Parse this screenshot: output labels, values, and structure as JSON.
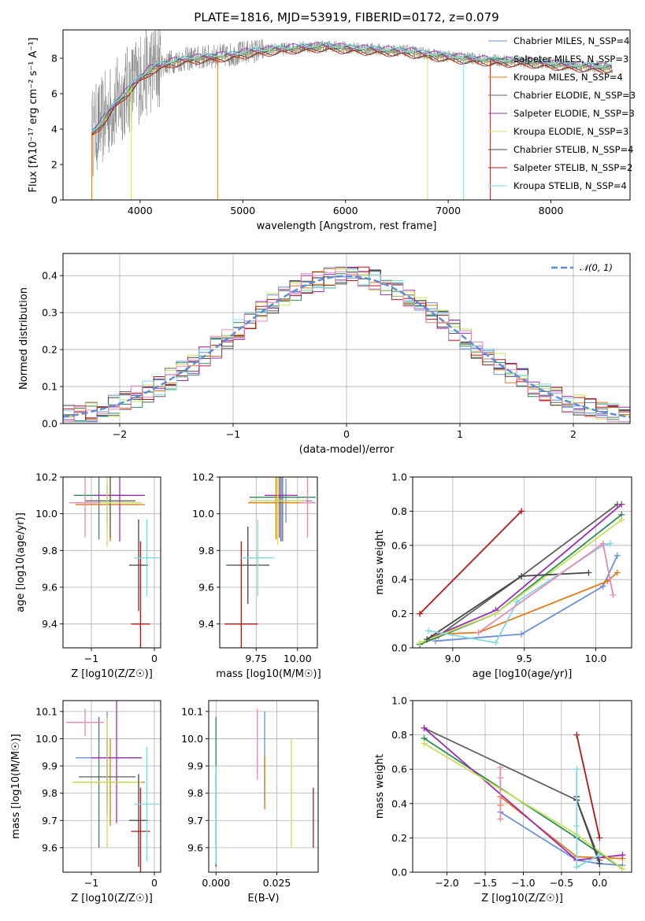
{
  "figure_title": "PLATE=1816, MJD=53919, FIBERID=0172, z=0.079",
  "colors": {
    "Chabrier MILES": "#6a8fd8",
    "Salpeter MILES": "#2e8b57",
    "Kroupa MILES": "#e07b1a",
    "Chabrier ELODIE": "#606060",
    "Salpeter ELODIE": "#9a2fb3",
    "Kroupa ELODIE": "#c8e05a",
    "Chabrier STELIB": "#444444",
    "Salpeter STELIB": "#b01818",
    "Kroupa STELIB": "#7fdbe0"
  },
  "chart_data": [
    {
      "id": "spectrum",
      "type": "line",
      "title": "PLATE=1816, MJD=53919, FIBERID=0172, z=0.079",
      "xlabel": "wavelength [Angstrom, rest frame]",
      "ylabel": "Flux [fλ10⁻¹⁷ erg cm⁻² s⁻¹ A⁻¹]",
      "xlim": [
        3250,
        8770
      ],
      "ylim": [
        0,
        9.6
      ],
      "xticks": [
        4000,
        5000,
        6000,
        7000,
        8000
      ],
      "yticks": [
        0,
        2,
        4,
        6,
        8
      ],
      "data_color": "#808080",
      "continuum": [
        [
          3530,
          3.8
        ],
        [
          3600,
          4.2
        ],
        [
          3700,
          5.0
        ],
        [
          3800,
          5.7
        ],
        [
          3900,
          6.3
        ],
        [
          4000,
          6.9
        ],
        [
          4100,
          7.4
        ],
        [
          4300,
          7.8
        ],
        [
          4500,
          8.0
        ],
        [
          4700,
          8.1
        ],
        [
          4900,
          8.2
        ],
        [
          5100,
          8.4
        ],
        [
          5300,
          8.5
        ],
        [
          5500,
          8.6
        ],
        [
          5800,
          8.7
        ],
        [
          6000,
          8.6
        ],
        [
          6300,
          8.5
        ],
        [
          6600,
          8.4
        ],
        [
          7000,
          8.1
        ],
        [
          7400,
          7.9
        ],
        [
          7800,
          7.8
        ],
        [
          8200,
          7.6
        ],
        [
          8600,
          7.5
        ]
      ],
      "legend_location": "upper right",
      "legend": [
        {
          "label": "Chabrier MILES, N_SSP=4",
          "color": "#6a8fd8"
        },
        {
          "label": "Salpeter MILES, N_SSP=3",
          "color": "#2e8b57"
        },
        {
          "label": "Kroupa MILES, N_SSP=4",
          "color": "#e07b1a"
        },
        {
          "label": "Chabrier ELODIE, N_SSP=3",
          "color": "#606060"
        },
        {
          "label": "Salpeter ELODIE, N_SSP=3",
          "color": "#9a2fb3"
        },
        {
          "label": "Kroupa ELODIE, N_SSP=3",
          "color": "#c8e05a"
        },
        {
          "label": "Chabrier STELIB, N_SSP=4",
          "color": "#444444"
        },
        {
          "label": "Salpeter STELIB, N_SSP=2",
          "color": "#b01818"
        },
        {
          "label": "Kroupa STELIB, N_SSP=4",
          "color": "#7fdbe0"
        }
      ]
    },
    {
      "id": "residuals",
      "type": "histogram",
      "xlabel": "(data-model)/error",
      "ylabel": "Normed distribution",
      "xlim": [
        -2.5,
        2.5
      ],
      "ylim": [
        0,
        0.46
      ],
      "xticks": [
        -2,
        -1,
        0,
        1,
        2
      ],
      "yticks": [
        0.0,
        0.1,
        0.2,
        0.3,
        0.4
      ],
      "bin_width": 0.1,
      "gaussian_label": "𝒩(0, 1)",
      "gaussian_color": "#5b8bd9",
      "grid": true
    },
    {
      "id": "age_vs_Z",
      "type": "errorbar",
      "xlabel": "Z [log10(Z/Z☉)]",
      "ylabel": "age  [log10(age/yr)]",
      "xlim": [
        -1.45,
        0.1
      ],
      "ylim": [
        9.27,
        10.2
      ],
      "xticks": [
        -1,
        0
      ],
      "yticks": [
        9.4,
        9.6,
        9.8,
        10.0,
        10.2
      ],
      "points": [
        {
          "model": "Chabrier MILES",
          "x": -0.75,
          "xerr": 0.5,
          "y": 10.05,
          "yerr": 0.11
        },
        {
          "model": "Salpeter MILES",
          "x": -0.88,
          "xerr": 0.4,
          "y": 10.1,
          "yerr": 0.24
        },
        {
          "model": "Kroupa MILES",
          "x": -0.7,
          "xerr": 0.55,
          "y": 10.05,
          "yerr": 0.2
        },
        {
          "model": "Chabrier ELODIE",
          "x": -0.7,
          "xerr": 0.4,
          "y": 10.07,
          "yerr": 0.2
        },
        {
          "model": "Salpeter ELODIE",
          "x": -0.55,
          "xerr": 0.4,
          "y": 10.1,
          "yerr": 0.25
        },
        {
          "model": "Kroupa ELODIE",
          "x": -0.75,
          "xerr": 0.55,
          "y": 10.06,
          "yerr": 0.24
        },
        {
          "model": "Chabrier STELIB",
          "x": -0.25,
          "xerr": 0.15,
          "y": 9.72,
          "yerr": 0.25
        },
        {
          "model": "Salpeter STELIB",
          "x": -0.22,
          "xerr": 0.15,
          "y": 9.4,
          "yerr": 0.45
        },
        {
          "model": "Kroupa STELIB",
          "x": -0.12,
          "xerr": 0.2,
          "y": 9.76,
          "yerr": 0.21
        },
        {
          "model": "Salpeter ELODIE",
          "x": -1.1,
          "xerr": 0.25,
          "y": 10.06,
          "yerr": 0.19
        }
      ]
    },
    {
      "id": "age_vs_mass",
      "type": "errorbar",
      "xlabel": "mass [log10(M/M☉)]",
      "ylabel": "",
      "xlim": [
        9.53,
        10.12
      ],
      "ylim": [
        9.27,
        10.2
      ],
      "xticks": [
        9.75,
        10.0
      ],
      "yticks": [
        9.4,
        9.6,
        9.8,
        10.0,
        10.2
      ],
      "points": [
        {
          "model": "Chabrier MILES",
          "x": 9.93,
          "xerr": 0.16,
          "y": 10.07,
          "yerr": 0.12
        },
        {
          "model": "Salpeter MILES",
          "x": 9.91,
          "xerr": 0.2,
          "y": 10.09,
          "yerr": 0.24
        },
        {
          "model": "Kroupa MILES",
          "x": 9.87,
          "xerr": 0.17,
          "y": 10.06,
          "yerr": 0.2
        },
        {
          "model": "Chabrier ELODIE",
          "x": 9.89,
          "xerr": 0.15,
          "y": 10.07,
          "yerr": 0.2
        },
        {
          "model": "Salpeter ELODIE",
          "x": 9.9,
          "xerr": 0.1,
          "y": 10.1,
          "yerr": 0.25
        },
        {
          "model": "Kroupa ELODIE",
          "x": 9.88,
          "xerr": 0.17,
          "y": 10.07,
          "yerr": 0.24
        },
        {
          "model": "Chabrier STELIB",
          "x": 9.7,
          "xerr": 0.13,
          "y": 9.72,
          "yerr": 0.21
        },
        {
          "model": "Salpeter STELIB",
          "x": 9.66,
          "xerr": 0.1,
          "y": 9.4,
          "yerr": 0.45
        },
        {
          "model": "Kroupa STELIB",
          "x": 9.76,
          "xerr": 0.1,
          "y": 9.76,
          "yerr": 0.21
        },
        {
          "model": "Salpeter ELODIE",
          "x": 10.06,
          "xerr": 0.05,
          "y": 10.06,
          "yerr": 0.19
        }
      ]
    },
    {
      "id": "weight_vs_age",
      "type": "line",
      "xlabel": "age  [log10(age/yr)]",
      "ylabel": "mass weight",
      "xlim": [
        8.72,
        10.25
      ],
      "ylim": [
        0,
        1.0
      ],
      "xticks": [
        9.0,
        9.5,
        10.0
      ],
      "yticks": [
        0.0,
        0.2,
        0.4,
        0.6,
        0.8,
        1.0
      ],
      "series": [
        {
          "name": "Chabrier MILES",
          "x": [
            8.88,
            9.48,
            10.05,
            10.15
          ],
          "y": [
            0.04,
            0.08,
            0.36,
            0.54
          ]
        },
        {
          "name": "Salpeter MILES",
          "x": [
            8.77,
            9.3,
            10.18
          ],
          "y": [
            0.02,
            0.2,
            0.78
          ]
        },
        {
          "name": "Kroupa MILES",
          "x": [
            8.9,
            9.18,
            10.08,
            10.15
          ],
          "y": [
            0.08,
            0.09,
            0.39,
            0.44
          ]
        },
        {
          "name": "Chabrier ELODIE",
          "x": [
            8.9,
            9.48,
            10.15
          ],
          "y": [
            0.07,
            0.42,
            0.84
          ]
        },
        {
          "name": "Salpeter ELODIE",
          "x": [
            8.85,
            9.3,
            10.18
          ],
          "y": [
            0.06,
            0.22,
            0.84
          ]
        },
        {
          "name": "Kroupa ELODIE",
          "x": [
            8.77,
            9.3,
            10.18
          ],
          "y": [
            0.03,
            0.2,
            0.75
          ]
        },
        {
          "name": "Chabrier STELIB",
          "x": [
            8.82,
            9.48,
            9.95
          ],
          "y": [
            0.05,
            0.42,
            0.44
          ]
        },
        {
          "name": "Salpeter STELIB",
          "x": [
            8.77,
            9.48
          ],
          "y": [
            0.2,
            0.8
          ]
        },
        {
          "name": "Kroupa STELIB",
          "x": [
            8.83,
            9.3,
            9.45,
            10.05,
            10.1
          ],
          "y": [
            0.1,
            0.03,
            0.27,
            0.6,
            0.61
          ]
        },
        {
          "name": "Salpeter ELODIE",
          "x": [
            9.18,
            10.05,
            10.12
          ],
          "y": [
            0.09,
            0.61,
            0.31
          ]
        }
      ]
    },
    {
      "id": "mass_vs_Z",
      "type": "errorbar",
      "xlabel": "Z [log10(Z/Z☉)]",
      "ylabel": "mass [log10(M/M☉)]",
      "xlim": [
        -1.45,
        0.1
      ],
      "ylim": [
        9.51,
        10.14
      ],
      "xticks": [
        -1,
        0
      ],
      "yticks": [
        9.6,
        9.7,
        9.8,
        9.9,
        10.0,
        10.1
      ],
      "points": [
        {
          "model": "Chabrier MILES",
          "x": -0.75,
          "xerr": 0.5,
          "y": 9.93,
          "yerr": 0.17
        },
        {
          "model": "Salpeter MILES",
          "x": -0.88,
          "xerr": 0.4,
          "y": 9.84,
          "yerr": 0.24
        },
        {
          "model": "Kroupa MILES",
          "x": -0.7,
          "xerr": 0.55,
          "y": 9.84,
          "yerr": 0.16
        },
        {
          "model": "Chabrier ELODIE",
          "x": -0.75,
          "xerr": 0.45,
          "y": 9.86,
          "yerr": 0.14
        },
        {
          "model": "Salpeter ELODIE",
          "x": -0.6,
          "xerr": 0.4,
          "y": 9.93,
          "yerr": 0.24
        },
        {
          "model": "Kroupa ELODIE",
          "x": -0.75,
          "xerr": 0.55,
          "y": 9.84,
          "yerr": 0.24
        },
        {
          "model": "Chabrier STELIB",
          "x": -0.25,
          "xerr": 0.15,
          "y": 9.7,
          "yerr": 0.17
        },
        {
          "model": "Salpeter STELIB",
          "x": -0.22,
          "xerr": 0.15,
          "y": 9.66,
          "yerr": 0.16
        },
        {
          "model": "Kroupa STELIB",
          "x": -0.12,
          "xerr": 0.2,
          "y": 9.76,
          "yerr": 0.21
        },
        {
          "model": "Salpeter ELODIE",
          "x": -1.1,
          "xerr": 0.3,
          "y": 10.06,
          "yerr": 0.05
        }
      ]
    },
    {
      "id": "mass_vs_EBV",
      "type": "errorbar",
      "xlabel": "E(B-V)",
      "ylabel": "",
      "xlim": [
        -0.003,
        0.042
      ],
      "ylim": [
        9.51,
        10.14
      ],
      "xticks": [
        0.0,
        0.025
      ],
      "yticks": [
        9.6,
        9.7,
        9.8,
        9.9,
        10.0,
        10.1
      ],
      "points": [
        {
          "model": "Chabrier MILES",
          "x": 0.02,
          "y": 9.93,
          "yerr": 0.17
        },
        {
          "model": "Salpeter MILES",
          "x": 0.0,
          "y": 9.84,
          "yerr": 0.24
        },
        {
          "model": "Kroupa MILES",
          "x": 0.02,
          "y": 9.84,
          "yerr": 0.1
        },
        {
          "model": "Chabrier ELODIE",
          "x": 0.0,
          "y": 9.86,
          "yerr": 0.02
        },
        {
          "model": "Salpeter ELODIE",
          "x": 0.0,
          "y": 9.72,
          "yerr": 0.01
        },
        {
          "model": "Kroupa ELODIE",
          "x": 0.031,
          "y": 9.8,
          "yerr": 0.2
        },
        {
          "model": "Chabrier STELIB",
          "x": 0.0,
          "y": 9.7,
          "yerr": 0.17
        },
        {
          "model": "Salpeter STELIB",
          "x": 0.04,
          "y": 9.71,
          "yerr": 0.11
        },
        {
          "model": "Kroupa STELIB",
          "x": 0.0,
          "y": 9.72,
          "yerr": 0.18
        },
        {
          "model": "Salpeter ELODIE",
          "x": 0.017,
          "y": 9.98,
          "yerr": 0.13
        }
      ]
    },
    {
      "id": "weight_vs_Z",
      "type": "line",
      "xlabel": "Z [log10(Z/Z☉)]",
      "ylabel": "mass weight",
      "xlim": [
        -2.45,
        0.42
      ],
      "ylim": [
        0,
        1.0
      ],
      "xticks": [
        -2.0,
        -1.5,
        -1.0,
        -0.5,
        0.0
      ],
      "yticks": [
        0.0,
        0.2,
        0.4,
        0.6,
        0.8,
        1.0
      ],
      "series": [
        {
          "name": "Chabrier MILES",
          "x": [
            -1.3,
            -0.3,
            0.0,
            0.3
          ],
          "y": [
            0.35,
            0.07,
            0.05,
            0.04
          ]
        },
        {
          "name": "Salpeter MILES",
          "x": [
            -2.3,
            -0.3,
            0.3
          ],
          "y": [
            0.78,
            0.2,
            0.02
          ]
        },
        {
          "name": "Kroupa MILES",
          "x": [
            -1.3,
            -1.3,
            -0.3,
            0.3
          ],
          "y": [
            0.39,
            0.44,
            0.09,
            0.08
          ]
        },
        {
          "name": "Chabrier ELODIE",
          "x": [
            -2.3,
            -0.3,
            0.0
          ],
          "y": [
            0.84,
            0.42,
            0.07
          ]
        },
        {
          "name": "Salpeter ELODIE",
          "x": [
            -2.3,
            -0.3,
            0.3
          ],
          "y": [
            0.84,
            0.07,
            0.1
          ]
        },
        {
          "name": "Kroupa ELODIE",
          "x": [
            -2.3,
            -0.3,
            0.3
          ],
          "y": [
            0.75,
            0.22,
            0.02
          ]
        },
        {
          "name": "Chabrier STELIB",
          "x": [
            -0.3,
            -0.3,
            0.0
          ],
          "y": [
            0.44,
            0.42,
            0.05
          ]
        },
        {
          "name": "Salpeter STELIB",
          "x": [
            -0.3,
            0.0
          ],
          "y": [
            0.8,
            0.2
          ]
        },
        {
          "name": "Kroupa STELIB",
          "x": [
            -0.3,
            -0.3,
            -0.3,
            0.0
          ],
          "y": [
            0.6,
            0.27,
            0.03,
            0.1
          ]
        },
        {
          "name": "Salpeter ELODIE",
          "x": [
            -1.3,
            -1.3,
            -1.3
          ],
          "y": [
            0.61,
            0.31,
            0.55
          ]
        }
      ]
    }
  ]
}
